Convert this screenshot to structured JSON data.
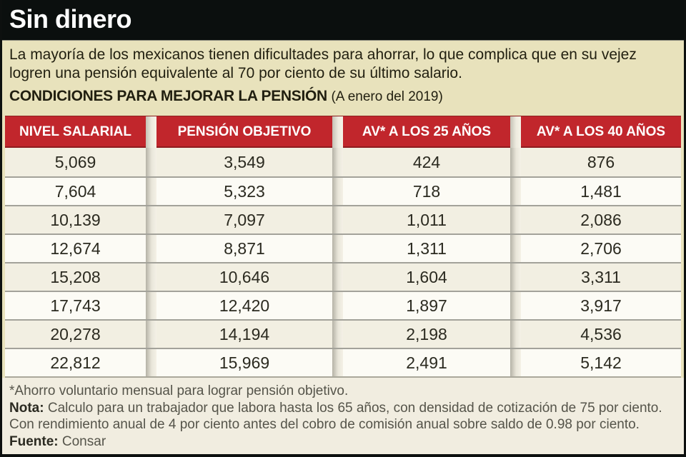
{
  "title": "Sin dinero",
  "intro": "La mayoría de los mexicanos tienen dificultades para ahorrar, lo que complica que en su vejez logren una pensión equivalente al 70 por ciento de su último salario.",
  "subtitle": {
    "main": "CONDICIONES PARA MEJORAR LA PENSIÓN",
    "date": "(A enero del 2019)"
  },
  "chart_data": {
    "type": "table",
    "title": "CONDICIONES PARA MEJORAR LA PENSIÓN (A enero del 2019)",
    "columns": [
      "NIVEL SALARIAL",
      "PENSIÓN OBJETIVO",
      "AV* A LOS 25 AÑOS",
      "AV* A LOS 40 AÑOS"
    ],
    "rows": [
      [
        "5,069",
        "3,549",
        "424",
        "876"
      ],
      [
        "7,604",
        "5,323",
        "718",
        "1,481"
      ],
      [
        "10,139",
        "7,097",
        "1,011",
        "2,086"
      ],
      [
        "12,674",
        "8,871",
        "1,311",
        "2,706"
      ],
      [
        "15,208",
        "10,646",
        "1,604",
        "3,311"
      ],
      [
        "17,743",
        "12,420",
        "1,897",
        "3,917"
      ],
      [
        "20,278",
        "14,194",
        "2,198",
        "4,536"
      ],
      [
        "22,812",
        "15,969",
        "2,491",
        "5,142"
      ]
    ]
  },
  "footnotes": {
    "asterisk": "*Ahorro voluntario mensual para lograr pensión objetivo.",
    "note_label": "Nota:",
    "note_text": "Calculo para un trabajador que labora hasta los 65 años, con densidad de cotización de 75 por ciento.",
    "note_text2": "Con rendimiento anual de 4 por ciento antes del cobro de comisión anual sobre saldo de 0.98 por ciento.",
    "source_label": "Fuente:",
    "source_text": "Consar"
  },
  "colors": {
    "title_bar": "#0b0f0e",
    "header_red": "#c1262c",
    "background_beige": "#e8e2bc",
    "footer_background": "#f1ede0",
    "row_odd": "#f2efe2",
    "row_even": "#fcfbf5"
  }
}
